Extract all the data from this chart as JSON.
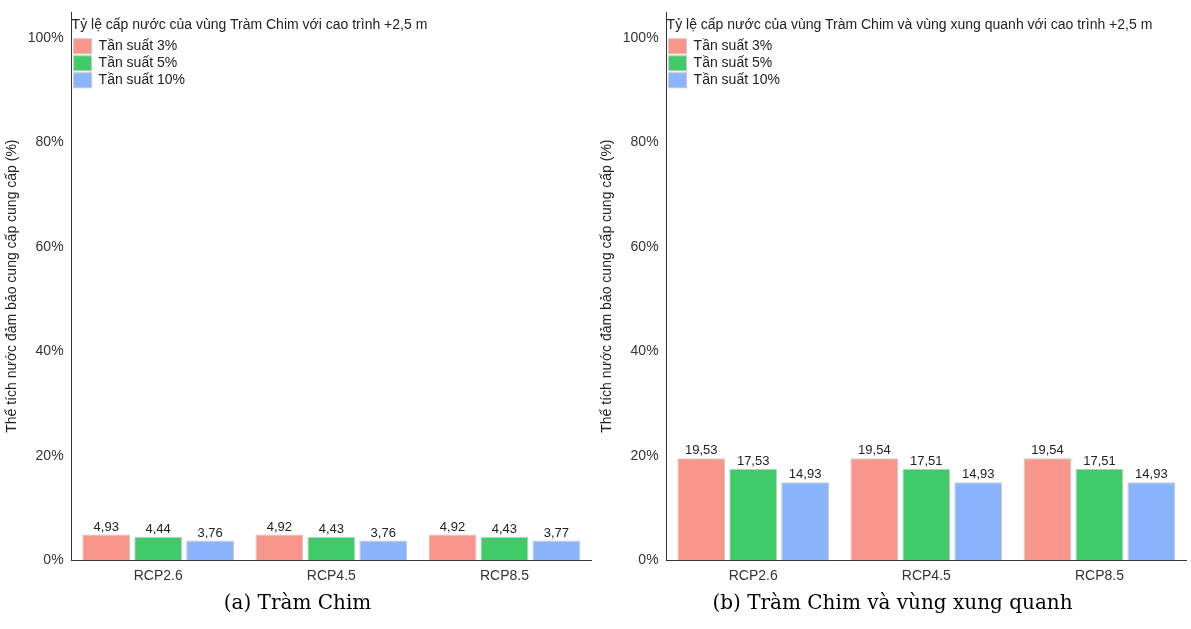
{
  "chart_data": [
    {
      "type": "bar",
      "ylabel": "Thể tích nước đảm bảo cung cấp cung cấp (%)",
      "legend_title": "Tỷ lệ cấp nước của vùng Tràm Chim với cao trình +2,5 m",
      "categories": [
        "RCP2.6",
        "RCP4.5",
        "RCP8.5"
      ],
      "series": [
        {
          "name": "Tần suất 3%",
          "color": "#f8968c",
          "values": [
            4.93,
            4.92,
            4.92
          ],
          "value_labels": [
            "4,93",
            "4,92",
            "4,92"
          ]
        },
        {
          "name": "Tần suất 5%",
          "color": "#3ecb68",
          "values": [
            4.44,
            4.43,
            4.43
          ],
          "value_labels": [
            "4,44",
            "4,43",
            "4,43"
          ]
        },
        {
          "name": "Tần suất 10%",
          "color": "#8ab4fc",
          "values": [
            3.76,
            3.76,
            3.77
          ],
          "value_labels": [
            "3,76",
            "3,76",
            "3,77"
          ]
        }
      ],
      "ylim": [
        0,
        105
      ],
      "yticks": [
        {
          "value": 0,
          "label": "0%"
        },
        {
          "value": 20,
          "label": "20%"
        },
        {
          "value": 40,
          "label": "40%"
        },
        {
          "value": 60,
          "label": "60%"
        },
        {
          "value": 80,
          "label": "80%"
        },
        {
          "value": 100,
          "label": "100%"
        }
      ],
      "legend": "top left",
      "annotations": [
        "(a) Tràm Chim"
      ]
    },
    {
      "type": "bar",
      "ylabel": "Thể tích nước đảm bảo cung cấp cung cấp (%)",
      "legend_title": "Tỷ lệ cấp nước của vùng Tràm Chim và vùng xung quanh với cao trình +2,5 m",
      "categories": [
        "RCP2.6",
        "RCP4.5",
        "RCP8.5"
      ],
      "series": [
        {
          "name": "Tần suất 3%",
          "color": "#f8968c",
          "values": [
            19.53,
            19.54,
            19.54
          ],
          "value_labels": [
            "19,53",
            "19,54",
            "19,54"
          ]
        },
        {
          "name": "Tần suất 5%",
          "color": "#3ecb68",
          "values": [
            17.53,
            17.51,
            17.51
          ],
          "value_labels": [
            "17,53",
            "17,51",
            "17,51"
          ]
        },
        {
          "name": "Tần suất 10%",
          "color": "#8ab4fc",
          "values": [
            14.93,
            14.93,
            14.93
          ],
          "value_labels": [
            "14,93",
            "14,93",
            "14,93"
          ]
        }
      ],
      "ylim": [
        0,
        105
      ],
      "yticks": [
        {
          "value": 0,
          "label": "0%"
        },
        {
          "value": 20,
          "label": "20%"
        },
        {
          "value": 40,
          "label": "40%"
        },
        {
          "value": 60,
          "label": "60%"
        },
        {
          "value": 80,
          "label": "80%"
        },
        {
          "value": 100,
          "label": "100%"
        }
      ],
      "legend": "top left",
      "annotations": [
        "(b) Tràm Chim và vùng xung quanh"
      ]
    }
  ]
}
